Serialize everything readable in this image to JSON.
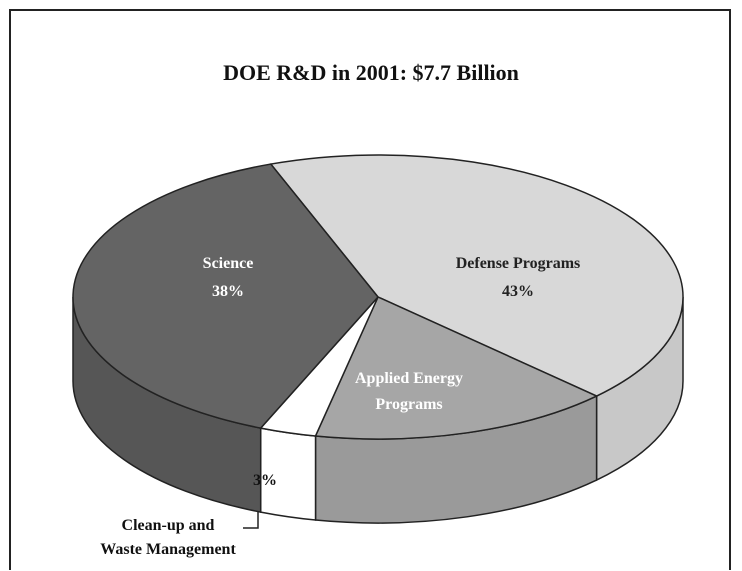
{
  "chart_data": {
    "type": "pie",
    "title": "DOE R&D in 2001:  $7.7 Billion",
    "slices": [
      {
        "label": "Defense Programs",
        "value": 43,
        "value_label": "43%",
        "color": "#d8d8d8",
        "side_color": "#c8c8c8",
        "text_color": "#222222"
      },
      {
        "label": "Applied Energy Programs",
        "value": 16,
        "value_label": "",
        "color": "#a6a6a6",
        "side_color": "#9a9a9a",
        "text_color": "#ffffff"
      },
      {
        "label": "Clean-up and Waste Management",
        "value": 3,
        "value_label": "3%",
        "color": "#ffffff",
        "side_color": "#ffffff",
        "text_color": "#111111"
      },
      {
        "label": "Science",
        "value": 38,
        "value_label": "38%",
        "color": "#646464",
        "side_color": "#565656",
        "text_color": "#ffffff"
      }
    ],
    "style": "3d-exploded-pie",
    "legend": "none"
  }
}
